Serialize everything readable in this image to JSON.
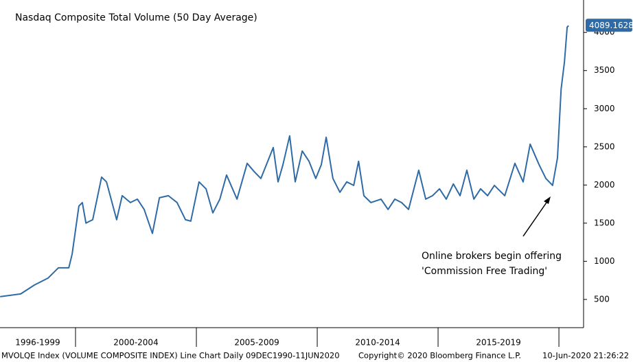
{
  "chart_data": {
    "type": "line",
    "title": "Nasdaq Composite Total Volume (50 Day Average)",
    "annotation": [
      "Online brokers begin offering",
      "'Commission Free Trading'"
    ],
    "footer": [
      "MVOLQE Index (VOLUME COMPOSITE INDEX) Line Chart  Daily 09DEC1990-11JUN2020",
      "Copyright© 2020 Bloomberg Finance L.P.",
      "10-Jun-2020 21:26:22"
    ],
    "categories": [
      "1996-1999",
      "2000-2004",
      "2005-2009",
      "2010-2014",
      "2015-2019"
    ],
    "xlim": [
      1996.875,
      2021.02
    ],
    "xticks": [
      2000,
      2005,
      2010,
      2015,
      2020
    ],
    "ylim": [
      130,
      4425
    ],
    "yticks": [
      500,
      1000,
      1500,
      2000,
      2500,
      3000,
      3500,
      4000
    ],
    "series": [
      {
        "color": "#2e6aa6",
        "x": [
          1996.88,
          1997.73,
          1998.3,
          1998.86,
          1999.29,
          1999.72,
          1999.86,
          2000.14,
          2000.28,
          2000.43,
          2000.71,
          2001.08,
          2001.28,
          2001.7,
          2001.93,
          2002.27,
          2002.56,
          2002.84,
          2003.18,
          2003.47,
          2003.84,
          2004.2,
          2004.55,
          2004.77,
          2005.11,
          2005.4,
          2005.68,
          2005.97,
          2006.25,
          2006.68,
          2007.1,
          2007.39,
          2007.67,
          2008.18,
          2008.38,
          2008.58,
          2008.86,
          2009.09,
          2009.38,
          2009.66,
          2009.94,
          2010.17,
          2010.37,
          2010.65,
          2010.94,
          2011.22,
          2011.51,
          2011.71,
          2011.93,
          2012.22,
          2012.64,
          2012.93,
          2013.21,
          2013.49,
          2013.78,
          2014.2,
          2014.49,
          2014.77,
          2015.06,
          2015.34,
          2015.63,
          2015.91,
          2016.19,
          2016.48,
          2016.76,
          2017.05,
          2017.33,
          2017.76,
          2018.18,
          2018.52,
          2018.81,
          2019.18,
          2019.46,
          2019.74,
          2019.94,
          2020.09,
          2020.23,
          2020.34,
          2020.4
        ],
        "values": [
          536,
          572,
          689,
          779,
          914,
          914,
          1095,
          1725,
          1770,
          1500,
          1545,
          2104,
          2041,
          1545,
          1860,
          1770,
          1815,
          1680,
          1365,
          1833,
          1860,
          1770,
          1545,
          1527,
          2041,
          1950,
          1635,
          1815,
          2131,
          1815,
          2284,
          2176,
          2086,
          2491,
          2041,
          2266,
          2644,
          2041,
          2446,
          2311,
          2086,
          2266,
          2626,
          2086,
          1905,
          2041,
          1995,
          2311,
          1860,
          1770,
          1815,
          1680,
          1815,
          1770,
          1680,
          2194,
          1815,
          1860,
          1950,
          1815,
          2014,
          1860,
          2194,
          1815,
          1950,
          1860,
          1995,
          1860,
          2284,
          2041,
          2536,
          2266,
          2086,
          1995,
          2356,
          3257,
          3617,
          4068,
          4089.1628
        ]
      }
    ]
  }
}
